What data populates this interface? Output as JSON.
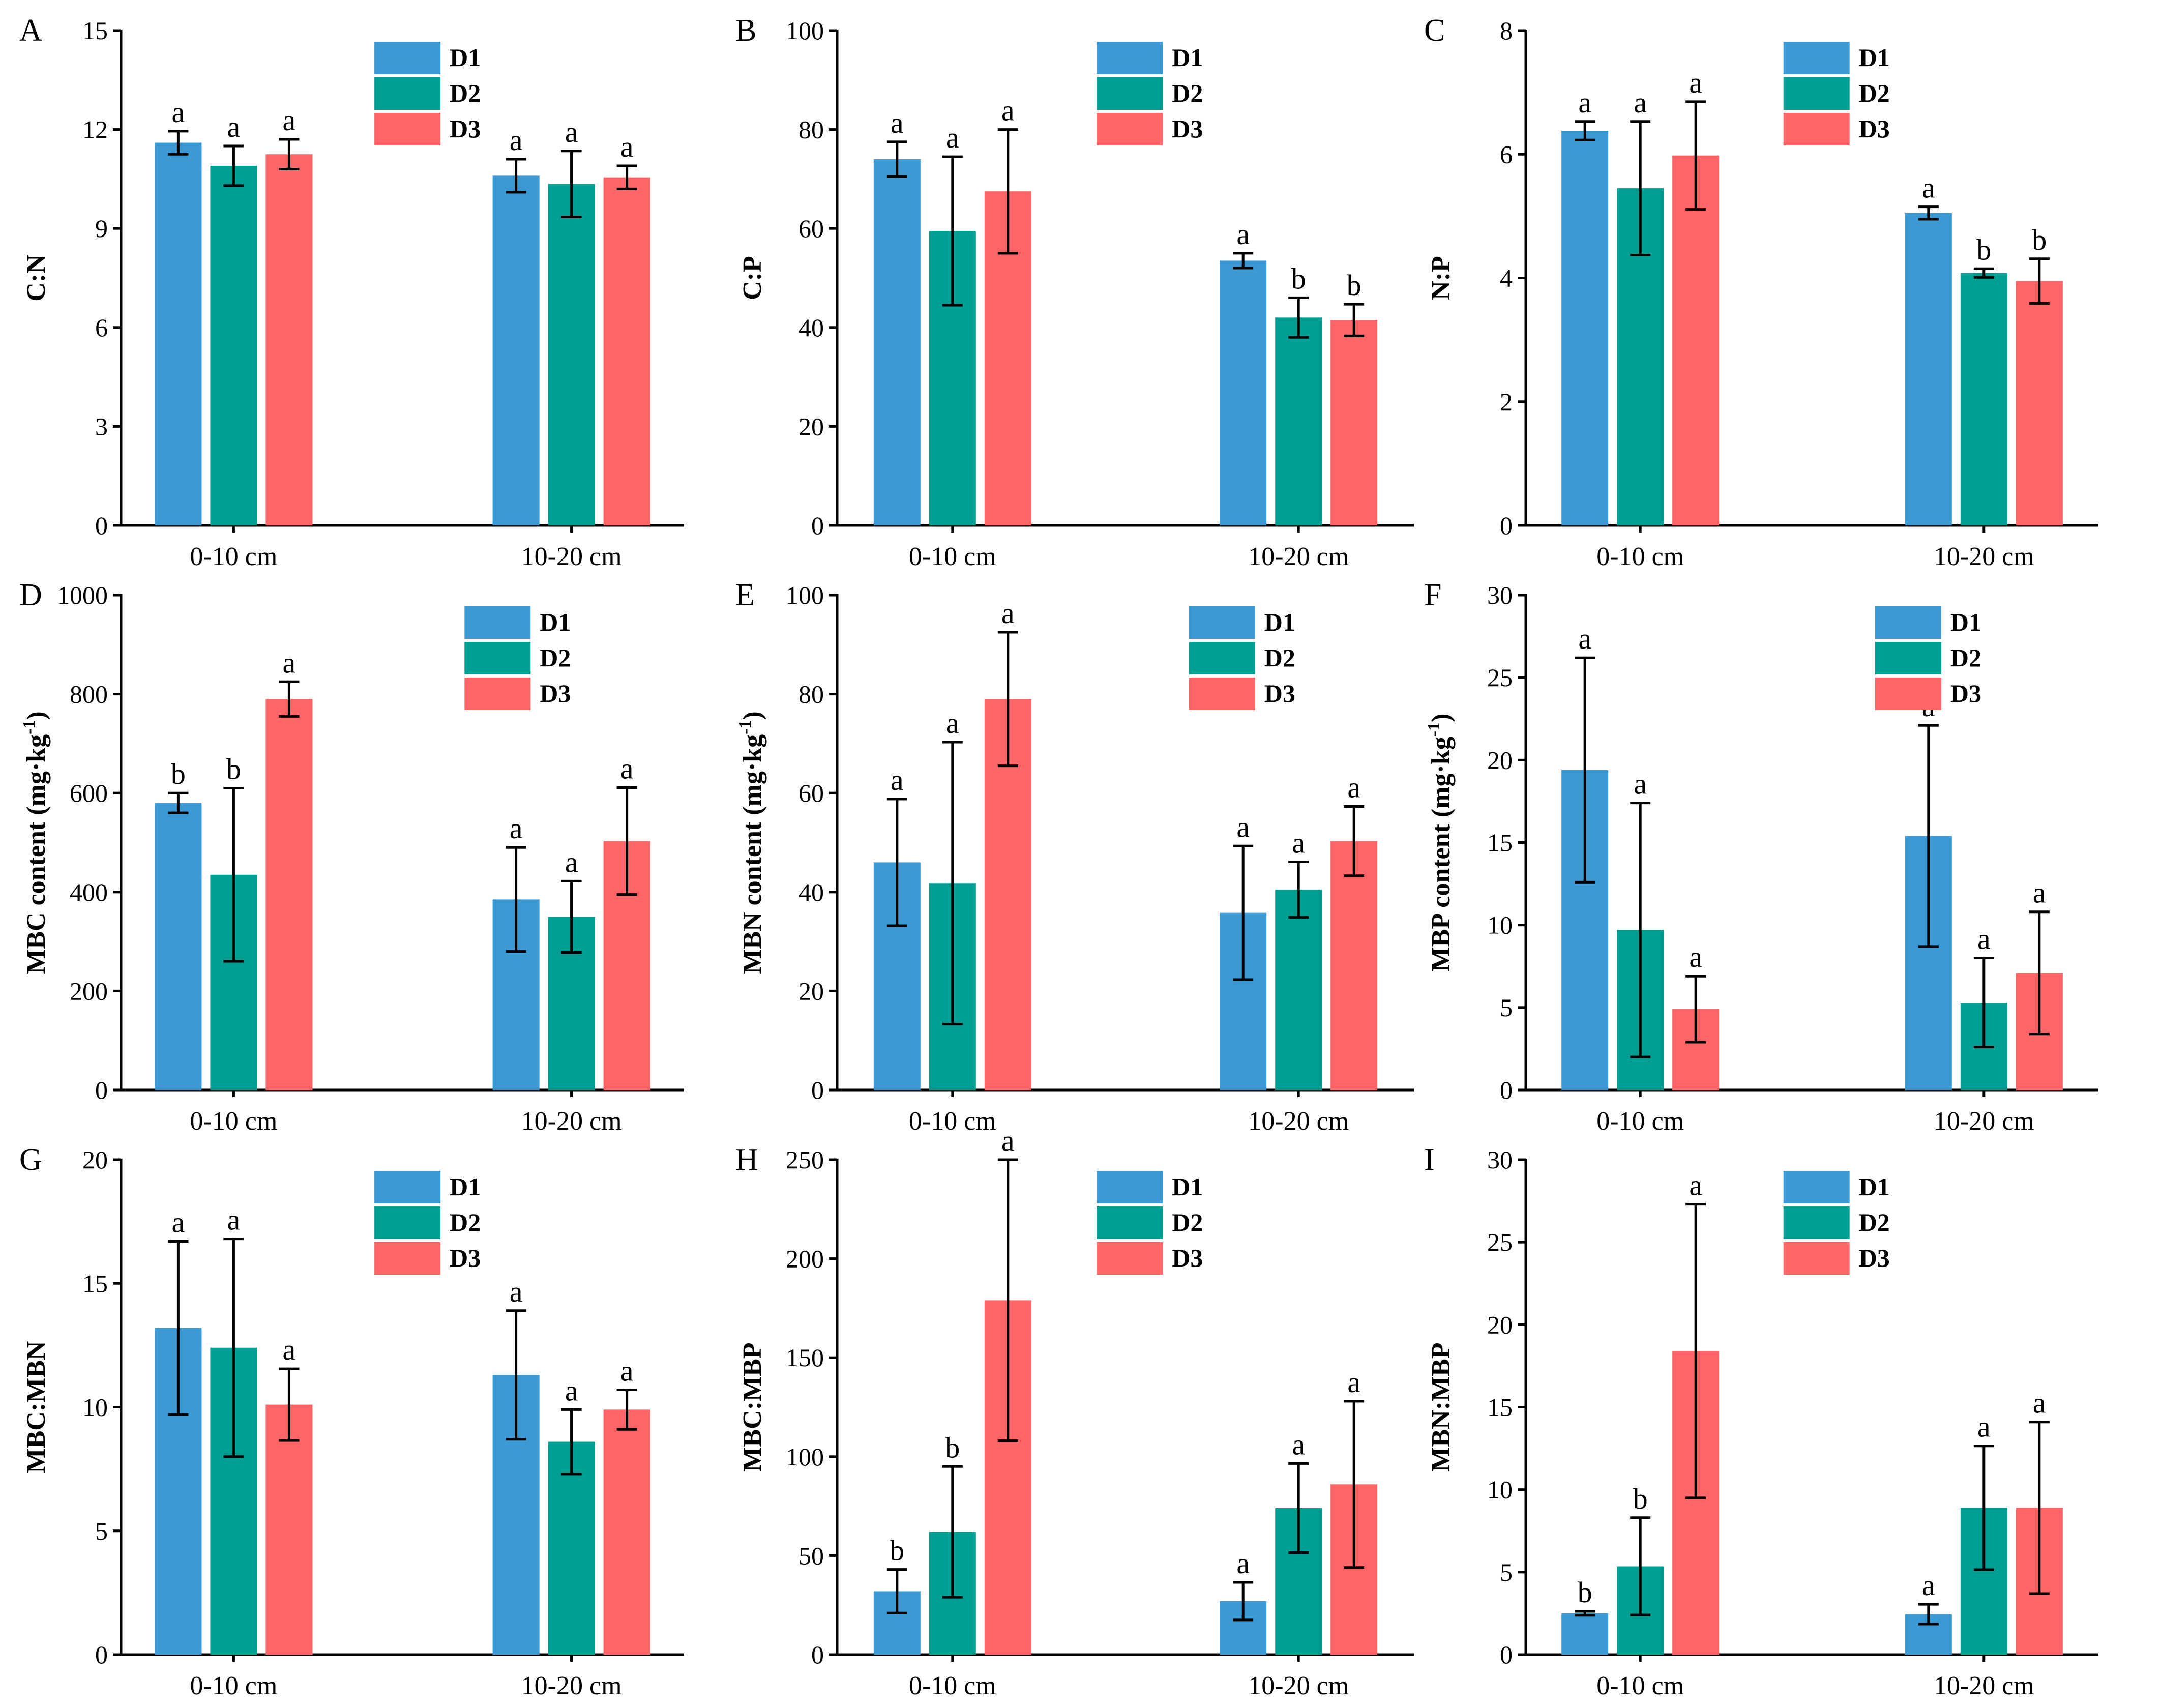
{
  "legend": {
    "entries": [
      {
        "name": "D1",
        "color": "#3b9ad4"
      },
      {
        "name": "D2",
        "color": "#009e93"
      },
      {
        "name": "D3",
        "color": "#ff6466"
      }
    ]
  },
  "chart_data": [
    {
      "type": "bar",
      "panel": "A",
      "ylabel": "C:N",
      "ylim": [
        0,
        15
      ],
      "yticks": [
        0,
        3,
        6,
        9,
        12,
        15
      ],
      "categories": [
        "0-10 cm",
        "10-20 cm"
      ],
      "legend_position": "top-right",
      "series": [
        {
          "name": "D1",
          "values": [
            11.6,
            10.6
          ],
          "errors": [
            0.35,
            0.5
          ],
          "letters": [
            "a",
            "a"
          ]
        },
        {
          "name": "D2",
          "values": [
            10.9,
            10.35
          ],
          "errors": [
            0.6,
            1.0
          ],
          "letters": [
            "a",
            "a"
          ]
        },
        {
          "name": "D3",
          "values": [
            11.25,
            10.55
          ],
          "errors": [
            0.45,
            0.35
          ],
          "letters": [
            "a",
            "a"
          ]
        }
      ]
    },
    {
      "type": "bar",
      "panel": "B",
      "ylabel": "C:P",
      "ylim": [
        0,
        100
      ],
      "yticks": [
        0,
        20,
        40,
        60,
        80,
        100
      ],
      "categories": [
        "0-10 cm",
        "10-20 cm"
      ],
      "legend_position": "top-right",
      "series": [
        {
          "name": "D1",
          "values": [
            74,
            53.5
          ],
          "errors": [
            3.5,
            1.5
          ],
          "letters": [
            "a",
            "a"
          ]
        },
        {
          "name": "D2",
          "values": [
            59.5,
            42
          ],
          "errors": [
            15,
            4
          ],
          "letters": [
            "a",
            "b"
          ]
        },
        {
          "name": "D3",
          "values": [
            67.5,
            41.5
          ],
          "errors": [
            12.5,
            3.2
          ],
          "letters": [
            "a",
            "b"
          ]
        }
      ]
    },
    {
      "type": "bar",
      "panel": "C",
      "ylabel": "N:P",
      "ylim": [
        0,
        8
      ],
      "yticks": [
        0,
        2,
        4,
        6,
        8
      ],
      "categories": [
        "0-10 cm",
        "10-20 cm"
      ],
      "legend_position": "top-right",
      "series": [
        {
          "name": "D1",
          "values": [
            6.38,
            5.05
          ],
          "errors": [
            0.15,
            0.1
          ],
          "letters": [
            "a",
            "a"
          ]
        },
        {
          "name": "D2",
          "values": [
            5.45,
            4.08
          ],
          "errors": [
            1.08,
            0.07
          ],
          "letters": [
            "a",
            "b"
          ]
        },
        {
          "name": "D3",
          "values": [
            5.98,
            3.95
          ],
          "errors": [
            0.87,
            0.36
          ],
          "letters": [
            "a",
            "b"
          ]
        }
      ]
    },
    {
      "type": "bar",
      "panel": "D",
      "ylabel": "MBC content (mg·kg",
      "ylabel_sup": "-1",
      "ylabel_end": ")",
      "ylim": [
        0,
        1000
      ],
      "yticks": [
        0,
        200,
        400,
        600,
        800,
        1000
      ],
      "categories": [
        "0-10 cm",
        "10-20 cm"
      ],
      "legend_position": "top-right",
      "series": [
        {
          "name": "D1",
          "values": [
            580,
            385
          ],
          "errors": [
            20,
            105
          ],
          "letters": [
            "b",
            "a"
          ]
        },
        {
          "name": "D2",
          "values": [
            435,
            350
          ],
          "errors": [
            175,
            72
          ],
          "letters": [
            "b",
            "a"
          ]
        },
        {
          "name": "D3",
          "values": [
            790,
            503
          ],
          "errors": [
            35,
            108
          ],
          "letters": [
            "a",
            "a"
          ]
        }
      ]
    },
    {
      "type": "bar",
      "panel": "E",
      "ylabel": "MBN content (mg·kg",
      "ylabel_sup": "-1",
      "ylabel_end": ")",
      "ylim": [
        0,
        100
      ],
      "yticks": [
        0,
        20,
        40,
        60,
        80,
        100
      ],
      "categories": [
        "0-10 cm",
        "10-20 cm"
      ],
      "legend_position": "top-right",
      "series": [
        {
          "name": "D1",
          "values": [
            46,
            35.8
          ],
          "errors": [
            12.8,
            13.5
          ],
          "letters": [
            "a",
            "a"
          ]
        },
        {
          "name": "D2",
          "values": [
            41.8,
            40.5
          ],
          "errors": [
            28.5,
            5.6
          ],
          "letters": [
            "a",
            "a"
          ]
        },
        {
          "name": "D3",
          "values": [
            79,
            50.3
          ],
          "errors": [
            13.5,
            7
          ],
          "letters": [
            "a",
            "a"
          ]
        }
      ]
    },
    {
      "type": "bar",
      "panel": "F",
      "ylabel": "MBP content (mg·kg",
      "ylabel_sup": "-1",
      "ylabel_end": ")",
      "ylim": [
        0,
        30
      ],
      "yticks": [
        0,
        5,
        10,
        15,
        20,
        25,
        30
      ],
      "categories": [
        "0-10 cm",
        "10-20 cm"
      ],
      "legend_position": "top-right",
      "series": [
        {
          "name": "D1",
          "values": [
            19.4,
            15.4
          ],
          "errors": [
            6.8,
            6.7
          ],
          "letters": [
            "a",
            "a"
          ]
        },
        {
          "name": "D2",
          "values": [
            9.7,
            5.3
          ],
          "errors": [
            7.7,
            2.7
          ],
          "letters": [
            "a",
            "a"
          ]
        },
        {
          "name": "D3",
          "values": [
            4.9,
            7.1
          ],
          "errors": [
            2,
            3.7
          ],
          "letters": [
            "a",
            "a"
          ]
        }
      ]
    },
    {
      "type": "bar",
      "panel": "G",
      "ylabel": "MBC:MBN",
      "ylim": [
        0,
        20
      ],
      "yticks": [
        0,
        5,
        10,
        15,
        20
      ],
      "categories": [
        "0-10 cm",
        "10-20 cm"
      ],
      "legend_position": "top-right",
      "series": [
        {
          "name": "D1",
          "values": [
            13.2,
            11.3
          ],
          "errors": [
            3.5,
            2.6
          ],
          "letters": [
            "a",
            "a"
          ]
        },
        {
          "name": "D2",
          "values": [
            12.4,
            8.6
          ],
          "errors": [
            4.4,
            1.3
          ],
          "letters": [
            "a",
            "a"
          ]
        },
        {
          "name": "D3",
          "values": [
            10.1,
            9.9
          ],
          "errors": [
            1.45,
            0.8
          ],
          "letters": [
            "a",
            "a"
          ]
        }
      ]
    },
    {
      "type": "bar",
      "panel": "H",
      "ylabel": "MBC:MBP",
      "ylim": [
        0,
        250
      ],
      "yticks": [
        0,
        50,
        100,
        150,
        200,
        250
      ],
      "categories": [
        "0-10 cm",
        "10-20 cm"
      ],
      "legend_position": "top-right",
      "series": [
        {
          "name": "D1",
          "values": [
            32,
            27
          ],
          "errors": [
            11,
            9.5
          ],
          "letters": [
            "b",
            "a"
          ]
        },
        {
          "name": "D2",
          "values": [
            62,
            74
          ],
          "errors": [
            33,
            22.5
          ],
          "letters": [
            "b",
            "a"
          ]
        },
        {
          "name": "D3",
          "values": [
            179,
            86
          ],
          "errors": [
            71,
            42
          ],
          "letters": [
            "a",
            "a"
          ]
        }
      ]
    },
    {
      "type": "bar",
      "panel": "I",
      "ylabel": "MBN:MBP",
      "ylim": [
        0,
        30
      ],
      "yticks": [
        0,
        5,
        10,
        15,
        20,
        25,
        30
      ],
      "categories": [
        "0-10 cm",
        "10-20 cm"
      ],
      "legend_position": "top-right",
      "series": [
        {
          "name": "D1",
          "values": [
            2.5,
            2.45
          ],
          "errors": [
            0.12,
            0.6
          ],
          "letters": [
            "b",
            "a"
          ]
        },
        {
          "name": "D2",
          "values": [
            5.35,
            8.9
          ],
          "errors": [
            2.95,
            3.75
          ],
          "letters": [
            "b",
            "a"
          ]
        },
        {
          "name": "D3",
          "values": [
            18.4,
            8.9
          ],
          "errors": [
            8.9,
            5.2
          ],
          "letters": [
            "a",
            "a"
          ]
        }
      ]
    }
  ]
}
